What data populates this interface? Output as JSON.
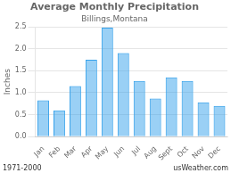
{
  "chart_data": {
    "type": "bar",
    "title": "Average Monthly Precipitation",
    "subtitle": "Billings,Montana",
    "ylabel": "Inches",
    "categories": [
      "Jan",
      "Feb",
      "Mar",
      "Apr",
      "May",
      "Jun",
      "Jul",
      "Aug",
      "Sept",
      "Oct",
      "Nov",
      "Dec"
    ],
    "values": [
      0.83,
      0.6,
      1.15,
      1.75,
      2.48,
      1.9,
      1.27,
      0.87,
      1.35,
      1.27,
      0.78,
      0.7
    ],
    "ylim": [
      0,
      2.5
    ],
    "yticks": [
      {
        "value": 0,
        "label": "0.0"
      },
      0.5,
      {
        "value": 1,
        "label": "1.0"
      },
      1.5,
      {
        "value": 2,
        "label": "2.0"
      },
      2.5
    ],
    "grid": true,
    "annotations": [
      "1971-2000",
      "usWeather.com"
    ]
  }
}
